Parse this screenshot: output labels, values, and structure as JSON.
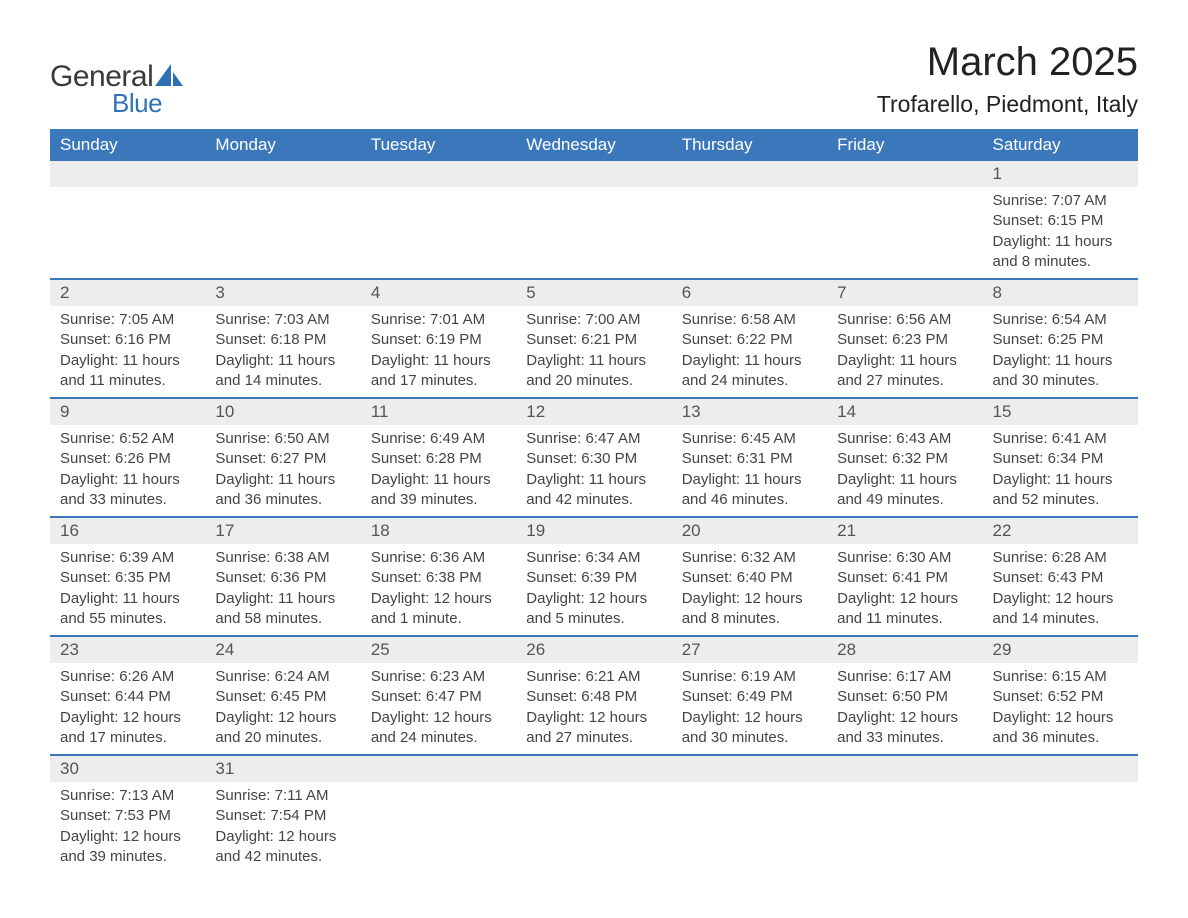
{
  "brand": {
    "name1": "General",
    "name2": "Blue",
    "sail_color": "#2f6fb3"
  },
  "title": "March 2025",
  "location": "Trofarello, Piedmont, Italy",
  "colors": {
    "header_bg": "#3b78bb",
    "header_text": "#ffffff",
    "daynum_bg": "#ededed",
    "border": "#3b78bb",
    "body_text": "#444444"
  },
  "day_headers": [
    "Sunday",
    "Monday",
    "Tuesday",
    "Wednesday",
    "Thursday",
    "Friday",
    "Saturday"
  ],
  "weeks": [
    [
      {
        "n": "",
        "sunrise": "",
        "sunset": "",
        "daylight": ""
      },
      {
        "n": "",
        "sunrise": "",
        "sunset": "",
        "daylight": ""
      },
      {
        "n": "",
        "sunrise": "",
        "sunset": "",
        "daylight": ""
      },
      {
        "n": "",
        "sunrise": "",
        "sunset": "",
        "daylight": ""
      },
      {
        "n": "",
        "sunrise": "",
        "sunset": "",
        "daylight": ""
      },
      {
        "n": "",
        "sunrise": "",
        "sunset": "",
        "daylight": ""
      },
      {
        "n": "1",
        "sunrise": "Sunrise: 7:07 AM",
        "sunset": "Sunset: 6:15 PM",
        "daylight": "Daylight: 11 hours and 8 minutes."
      }
    ],
    [
      {
        "n": "2",
        "sunrise": "Sunrise: 7:05 AM",
        "sunset": "Sunset: 6:16 PM",
        "daylight": "Daylight: 11 hours and 11 minutes."
      },
      {
        "n": "3",
        "sunrise": "Sunrise: 7:03 AM",
        "sunset": "Sunset: 6:18 PM",
        "daylight": "Daylight: 11 hours and 14 minutes."
      },
      {
        "n": "4",
        "sunrise": "Sunrise: 7:01 AM",
        "sunset": "Sunset: 6:19 PM",
        "daylight": "Daylight: 11 hours and 17 minutes."
      },
      {
        "n": "5",
        "sunrise": "Sunrise: 7:00 AM",
        "sunset": "Sunset: 6:21 PM",
        "daylight": "Daylight: 11 hours and 20 minutes."
      },
      {
        "n": "6",
        "sunrise": "Sunrise: 6:58 AM",
        "sunset": "Sunset: 6:22 PM",
        "daylight": "Daylight: 11 hours and 24 minutes."
      },
      {
        "n": "7",
        "sunrise": "Sunrise: 6:56 AM",
        "sunset": "Sunset: 6:23 PM",
        "daylight": "Daylight: 11 hours and 27 minutes."
      },
      {
        "n": "8",
        "sunrise": "Sunrise: 6:54 AM",
        "sunset": "Sunset: 6:25 PM",
        "daylight": "Daylight: 11 hours and 30 minutes."
      }
    ],
    [
      {
        "n": "9",
        "sunrise": "Sunrise: 6:52 AM",
        "sunset": "Sunset: 6:26 PM",
        "daylight": "Daylight: 11 hours and 33 minutes."
      },
      {
        "n": "10",
        "sunrise": "Sunrise: 6:50 AM",
        "sunset": "Sunset: 6:27 PM",
        "daylight": "Daylight: 11 hours and 36 minutes."
      },
      {
        "n": "11",
        "sunrise": "Sunrise: 6:49 AM",
        "sunset": "Sunset: 6:28 PM",
        "daylight": "Daylight: 11 hours and 39 minutes."
      },
      {
        "n": "12",
        "sunrise": "Sunrise: 6:47 AM",
        "sunset": "Sunset: 6:30 PM",
        "daylight": "Daylight: 11 hours and 42 minutes."
      },
      {
        "n": "13",
        "sunrise": "Sunrise: 6:45 AM",
        "sunset": "Sunset: 6:31 PM",
        "daylight": "Daylight: 11 hours and 46 minutes."
      },
      {
        "n": "14",
        "sunrise": "Sunrise: 6:43 AM",
        "sunset": "Sunset: 6:32 PM",
        "daylight": "Daylight: 11 hours and 49 minutes."
      },
      {
        "n": "15",
        "sunrise": "Sunrise: 6:41 AM",
        "sunset": "Sunset: 6:34 PM",
        "daylight": "Daylight: 11 hours and 52 minutes."
      }
    ],
    [
      {
        "n": "16",
        "sunrise": "Sunrise: 6:39 AM",
        "sunset": "Sunset: 6:35 PM",
        "daylight": "Daylight: 11 hours and 55 minutes."
      },
      {
        "n": "17",
        "sunrise": "Sunrise: 6:38 AM",
        "sunset": "Sunset: 6:36 PM",
        "daylight": "Daylight: 11 hours and 58 minutes."
      },
      {
        "n": "18",
        "sunrise": "Sunrise: 6:36 AM",
        "sunset": "Sunset: 6:38 PM",
        "daylight": "Daylight: 12 hours and 1 minute."
      },
      {
        "n": "19",
        "sunrise": "Sunrise: 6:34 AM",
        "sunset": "Sunset: 6:39 PM",
        "daylight": "Daylight: 12 hours and 5 minutes."
      },
      {
        "n": "20",
        "sunrise": "Sunrise: 6:32 AM",
        "sunset": "Sunset: 6:40 PM",
        "daylight": "Daylight: 12 hours and 8 minutes."
      },
      {
        "n": "21",
        "sunrise": "Sunrise: 6:30 AM",
        "sunset": "Sunset: 6:41 PM",
        "daylight": "Daylight: 12 hours and 11 minutes."
      },
      {
        "n": "22",
        "sunrise": "Sunrise: 6:28 AM",
        "sunset": "Sunset: 6:43 PM",
        "daylight": "Daylight: 12 hours and 14 minutes."
      }
    ],
    [
      {
        "n": "23",
        "sunrise": "Sunrise: 6:26 AM",
        "sunset": "Sunset: 6:44 PM",
        "daylight": "Daylight: 12 hours and 17 minutes."
      },
      {
        "n": "24",
        "sunrise": "Sunrise: 6:24 AM",
        "sunset": "Sunset: 6:45 PM",
        "daylight": "Daylight: 12 hours and 20 minutes."
      },
      {
        "n": "25",
        "sunrise": "Sunrise: 6:23 AM",
        "sunset": "Sunset: 6:47 PM",
        "daylight": "Daylight: 12 hours and 24 minutes."
      },
      {
        "n": "26",
        "sunrise": "Sunrise: 6:21 AM",
        "sunset": "Sunset: 6:48 PM",
        "daylight": "Daylight: 12 hours and 27 minutes."
      },
      {
        "n": "27",
        "sunrise": "Sunrise: 6:19 AM",
        "sunset": "Sunset: 6:49 PM",
        "daylight": "Daylight: 12 hours and 30 minutes."
      },
      {
        "n": "28",
        "sunrise": "Sunrise: 6:17 AM",
        "sunset": "Sunset: 6:50 PM",
        "daylight": "Daylight: 12 hours and 33 minutes."
      },
      {
        "n": "29",
        "sunrise": "Sunrise: 6:15 AM",
        "sunset": "Sunset: 6:52 PM",
        "daylight": "Daylight: 12 hours and 36 minutes."
      }
    ],
    [
      {
        "n": "30",
        "sunrise": "Sunrise: 7:13 AM",
        "sunset": "Sunset: 7:53 PM",
        "daylight": "Daylight: 12 hours and 39 minutes."
      },
      {
        "n": "31",
        "sunrise": "Sunrise: 7:11 AM",
        "sunset": "Sunset: 7:54 PM",
        "daylight": "Daylight: 12 hours and 42 minutes."
      },
      {
        "n": "",
        "sunrise": "",
        "sunset": "",
        "daylight": ""
      },
      {
        "n": "",
        "sunrise": "",
        "sunset": "",
        "daylight": ""
      },
      {
        "n": "",
        "sunrise": "",
        "sunset": "",
        "daylight": ""
      },
      {
        "n": "",
        "sunrise": "",
        "sunset": "",
        "daylight": ""
      },
      {
        "n": "",
        "sunrise": "",
        "sunset": "",
        "daylight": ""
      }
    ]
  ]
}
